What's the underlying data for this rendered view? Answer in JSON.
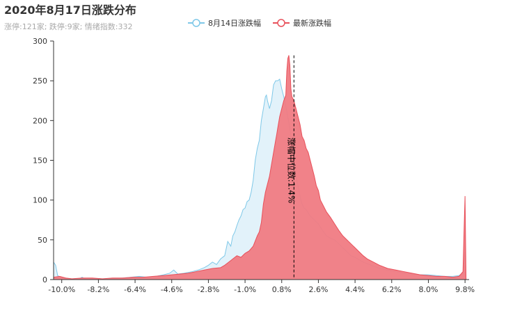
{
  "chart_data": {
    "type": "area",
    "title": "2020年8月17日涨跌分布",
    "subtitle": "涨停:121家; 跌停:9家; 情绪指数:332",
    "xlim": [
      -10.4,
      10.0
    ],
    "ylim": [
      0,
      300
    ],
    "x_ticks": [
      -10.0,
      -8.2,
      -6.4,
      -4.6,
      -2.8,
      -1.0,
      0.8,
      2.6,
      4.4,
      6.2,
      8.0,
      9.8
    ],
    "x_tick_labels": [
      "-10.0%",
      "-8.2%",
      "-6.4%",
      "-4.6%",
      "-2.8%",
      "-1.0%",
      "0.8%",
      "2.6%",
      "4.4%",
      "6.2%",
      "8.0%",
      "9.8%"
    ],
    "y_ticks": [
      0,
      50,
      100,
      150,
      200,
      250,
      300
    ],
    "y_tick_labels": [
      "0",
      "50",
      "100",
      "150",
      "200",
      "250",
      "300"
    ],
    "legend_position": "top-center",
    "series": [
      {
        "name": "8月14日涨跌幅",
        "color": "#7ec8e8",
        "fill": "#dff1fa",
        "points": [
          [
            -10.4,
            22
          ],
          [
            -10.3,
            18
          ],
          [
            -10.2,
            5
          ],
          [
            -10.0,
            2
          ],
          [
            -9.6,
            1
          ],
          [
            -9.2,
            0
          ],
          [
            -9.0,
            3
          ],
          [
            -8.8,
            0
          ],
          [
            -8.5,
            1
          ],
          [
            -8.0,
            0
          ],
          [
            -7.5,
            1
          ],
          [
            -7.0,
            2
          ],
          [
            -6.6,
            3
          ],
          [
            -6.2,
            4
          ],
          [
            -5.8,
            3
          ],
          [
            -5.4,
            4
          ],
          [
            -5.0,
            6
          ],
          [
            -4.7,
            8
          ],
          [
            -4.5,
            12
          ],
          [
            -4.3,
            7
          ],
          [
            -4.0,
            8
          ],
          [
            -3.6,
            10
          ],
          [
            -3.3,
            12
          ],
          [
            -3.0,
            15
          ],
          [
            -2.8,
            18
          ],
          [
            -2.6,
            22
          ],
          [
            -2.4,
            19
          ],
          [
            -2.2,
            26
          ],
          [
            -2.0,
            30
          ],
          [
            -1.85,
            48
          ],
          [
            -1.7,
            42
          ],
          [
            -1.6,
            55
          ],
          [
            -1.5,
            60
          ],
          [
            -1.4,
            68
          ],
          [
            -1.3,
            75
          ],
          [
            -1.2,
            80
          ],
          [
            -1.1,
            88
          ],
          [
            -1.0,
            90
          ],
          [
            -0.9,
            98
          ],
          [
            -0.8,
            100
          ],
          [
            -0.7,
            110
          ],
          [
            -0.6,
            125
          ],
          [
            -0.5,
            150
          ],
          [
            -0.4,
            165
          ],
          [
            -0.3,
            175
          ],
          [
            -0.2,
            200
          ],
          [
            -0.1,
            215
          ],
          [
            0.0,
            230
          ],
          [
            0.05,
            232
          ],
          [
            0.1,
            225
          ],
          [
            0.2,
            215
          ],
          [
            0.3,
            225
          ],
          [
            0.4,
            245
          ],
          [
            0.5,
            250
          ],
          [
            0.6,
            250
          ],
          [
            0.7,
            252
          ],
          [
            0.8,
            240
          ],
          [
            0.9,
            230
          ],
          [
            1.0,
            218
          ],
          [
            1.1,
            205
          ],
          [
            1.2,
            190
          ],
          [
            1.3,
            170
          ],
          [
            1.4,
            150
          ],
          [
            1.5,
            130
          ],
          [
            1.6,
            118
          ],
          [
            1.7,
            105
          ],
          [
            1.8,
            95
          ],
          [
            1.9,
            90
          ],
          [
            2.0,
            88
          ],
          [
            2.2,
            80
          ],
          [
            2.4,
            75
          ],
          [
            2.6,
            70
          ],
          [
            2.8,
            62
          ],
          [
            3.0,
            55
          ],
          [
            3.2,
            52
          ],
          [
            3.4,
            50
          ],
          [
            3.6,
            45
          ],
          [
            3.8,
            40
          ],
          [
            4.0,
            35
          ],
          [
            4.2,
            30
          ],
          [
            4.4,
            28
          ],
          [
            4.6,
            25
          ],
          [
            4.8,
            22
          ],
          [
            5.0,
            20
          ],
          [
            5.3,
            17
          ],
          [
            5.6,
            14
          ],
          [
            6.0,
            12
          ],
          [
            6.4,
            10
          ],
          [
            6.8,
            8
          ],
          [
            7.2,
            7
          ],
          [
            7.6,
            6
          ],
          [
            8.0,
            6
          ],
          [
            8.4,
            5
          ],
          [
            8.8,
            4
          ],
          [
            9.2,
            4
          ],
          [
            9.5,
            5
          ],
          [
            9.7,
            8
          ],
          [
            9.8,
            35
          ],
          [
            9.85,
            0
          ]
        ]
      },
      {
        "name": "最新涨跌幅",
        "color": "#e8505a",
        "fill": "#f07b83",
        "points": [
          [
            -10.4,
            3
          ],
          [
            -10.1,
            4
          ],
          [
            -9.8,
            2
          ],
          [
            -9.5,
            1
          ],
          [
            -9.0,
            2
          ],
          [
            -8.5,
            2
          ],
          [
            -8.0,
            1
          ],
          [
            -7.5,
            2
          ],
          [
            -7.0,
            2
          ],
          [
            -6.5,
            3
          ],
          [
            -6.0,
            3
          ],
          [
            -5.5,
            4
          ],
          [
            -5.0,
            5
          ],
          [
            -4.6,
            6
          ],
          [
            -4.2,
            7
          ],
          [
            -3.8,
            8
          ],
          [
            -3.4,
            10
          ],
          [
            -3.0,
            12
          ],
          [
            -2.6,
            14
          ],
          [
            -2.2,
            15
          ],
          [
            -2.0,
            18
          ],
          [
            -1.8,
            22
          ],
          [
            -1.6,
            26
          ],
          [
            -1.4,
            30
          ],
          [
            -1.2,
            28
          ],
          [
            -1.0,
            33
          ],
          [
            -0.8,
            36
          ],
          [
            -0.6,
            42
          ],
          [
            -0.4,
            55
          ],
          [
            -0.3,
            60
          ],
          [
            -0.2,
            72
          ],
          [
            -0.1,
            95
          ],
          [
            0.0,
            110
          ],
          [
            0.1,
            120
          ],
          [
            0.2,
            130
          ],
          [
            0.3,
            145
          ],
          [
            0.4,
            160
          ],
          [
            0.5,
            175
          ],
          [
            0.55,
            182
          ],
          [
            0.6,
            190
          ],
          [
            0.7,
            205
          ],
          [
            0.8,
            215
          ],
          [
            0.9,
            225
          ],
          [
            1.0,
            232
          ],
          [
            1.05,
            262
          ],
          [
            1.1,
            278
          ],
          [
            1.15,
            282
          ],
          [
            1.2,
            270
          ],
          [
            1.25,
            240
          ],
          [
            1.3,
            230
          ],
          [
            1.4,
            225
          ],
          [
            1.5,
            215
          ],
          [
            1.6,
            205
          ],
          [
            1.7,
            195
          ],
          [
            1.8,
            180
          ],
          [
            1.9,
            175
          ],
          [
            2.0,
            165
          ],
          [
            2.1,
            160
          ],
          [
            2.2,
            150
          ],
          [
            2.3,
            140
          ],
          [
            2.4,
            130
          ],
          [
            2.5,
            118
          ],
          [
            2.6,
            112
          ],
          [
            2.7,
            100
          ],
          [
            2.8,
            95
          ],
          [
            2.9,
            90
          ],
          [
            3.0,
            85
          ],
          [
            3.2,
            78
          ],
          [
            3.4,
            70
          ],
          [
            3.6,
            62
          ],
          [
            3.8,
            55
          ],
          [
            4.0,
            50
          ],
          [
            4.2,
            45
          ],
          [
            4.4,
            40
          ],
          [
            4.6,
            35
          ],
          [
            4.8,
            30
          ],
          [
            5.0,
            26
          ],
          [
            5.3,
            22
          ],
          [
            5.6,
            18
          ],
          [
            6.0,
            14
          ],
          [
            6.4,
            12
          ],
          [
            6.8,
            10
          ],
          [
            7.2,
            8
          ],
          [
            7.6,
            6
          ],
          [
            8.0,
            5
          ],
          [
            8.4,
            4
          ],
          [
            8.8,
            4
          ],
          [
            9.2,
            3
          ],
          [
            9.5,
            4
          ],
          [
            9.7,
            10
          ],
          [
            9.75,
            60
          ],
          [
            9.8,
            105
          ],
          [
            9.85,
            0
          ]
        ]
      }
    ],
    "markLine": {
      "x": 1.4,
      "label": "涨幅中位数:1.4%",
      "color": "#000000",
      "style": "dashed"
    }
  }
}
